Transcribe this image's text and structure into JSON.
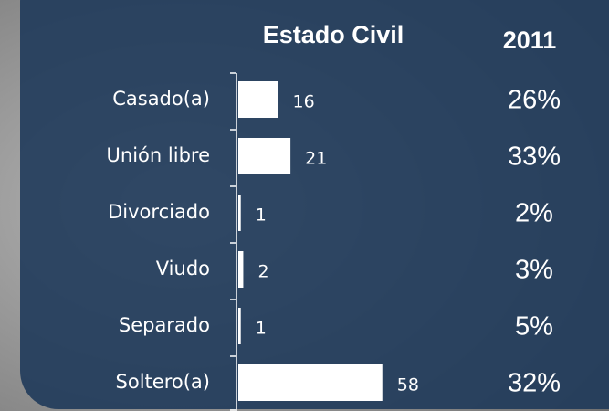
{
  "chart_data": {
    "type": "bar",
    "orientation": "horizontal",
    "title": "Estado Civil",
    "categories": [
      "Casado(a)",
      "Unión libre",
      "Divorciado",
      "Viudo",
      "Separado",
      "Soltero(a)"
    ],
    "values": [
      16,
      21,
      1,
      2,
      1,
      58
    ],
    "color": "#ffffff",
    "year_column": {
      "title": "2011",
      "values": [
        26,
        33,
        2,
        3,
        5,
        32
      ],
      "value_labels": [
        "26%",
        "33%",
        "2%",
        "3%",
        "5%",
        "32%"
      ]
    }
  }
}
